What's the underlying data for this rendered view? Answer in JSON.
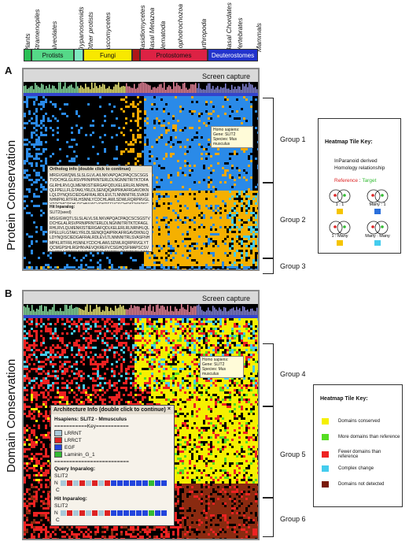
{
  "taxa": {
    "labels": [
      "Plants",
      "Stramenopiles",
      "Alveolates",
      "Trypanosomids",
      "Other protists",
      "Ascomycetes",
      "Basidiomycetes",
      "Basal Metazoa",
      "Nematoda",
      "Lophotrochozoa",
      "Arthropoda",
      "Basal Chordates",
      "Vertebrates",
      "Mammals"
    ],
    "groups": [
      "Protists",
      "Fungi",
      "Protostomes",
      "Deuterostomes"
    ]
  },
  "panelA": {
    "letter": "A",
    "side_title": "Protein Conservation",
    "screen_caption": "Screen capture",
    "groups": [
      "Group 1",
      "Group 2",
      "Group 3"
    ],
    "tooltip": {
      "line1": "Homo sapiens:",
      "line2": "Gene: SLIT2",
      "line3": "Species: Mus musculus"
    },
    "popup": {
      "header": "Ortholog info (double click to continue)",
      "seq1": "MRGVGWQMLSLSLGLVLAILNKVAPQACPAQCSCSGSTVDCHGLGLRSVPRNIPRNTERLDLNGNNITRITKTDFAGLRHLRVLQLMENKISTIERGAFQDLKELERLRLNRNHLQLFPELLFLGTAKLYRLDLSENQIQAIPRKAFRGAVDIKNLQLDYNQISCIEDGAFRALRDLEVLTLNNNNITRLSVASFNHMPKLRTFRLHSNNLYCDCHLAWLSDWLRQRPRVGLYTQCMGPSHLRGHNVAEVQKREFVCSGHQSFMAPSCSVLHCPAACTCSNNIVDCRGKGLTEIPTNLPETITEIRLEQNTIKVIPPGAFSPYKKLRRIDLSNNQISELAPDAFQGLRSLNSLVLYGNKITELPKSLFEGLFSLQLLLLNANKINCLRVDAFQDLHNLNLLSLYDNKLQTIAKGTFSPLRAIQTMHLAQNPFICDCHLKWLADYLHTNPIETSGARCTSPRRLANKRIGQIKSKKFRCS",
      "hit_label": "Hit Inparalog:",
      "hit_name": "SLIT2(seed)",
      "seq2": "MSGIGWQTLSLSLALVLSILNKVAPQACPAQCSCSGSTVDCHGLALRSVPRNIPRNTERLDLNGNNITRITKTDFAGLRHLRVLQLMENKISTIERGAFQDLKELERLRLNRNHLQLFPELLFLGTAKLYRLDLSENQIQAIPRKAFRGAVDIKNLQLDYNQISCIEDGAFRALRDLEVLTLNNNNITRLSVASFNHMPKLRTFRLHSNNLYCDCHLAWLSDWLRQRPRVGLYTQCMGPSHLRGHNVAEVQKREFVCSGHQSFMAPSCSVLHCPAACTCSNNIVDCRGKGLTEIPTNLPETITEIRLEQNTIKVIPPGAFSPYKKLRRIDLSNNQISELAPDAFQGLRSLNSLVLYGNKITELPKSLFEGLFSLQLLLLNANKINCLRVDAFQDLHNLNLLSLYDNKLQTIAKGTFSPLRAIQTMHLAQNPFICDCHLKWLADYLHTNPIETSGARC"
    },
    "key": {
      "title": "Heatmap Tile Key:",
      "line1": "InParanoid derived",
      "line2": "Homology relationship",
      "ref": "Reference",
      "sep": " : ",
      "target": "Target",
      "items": [
        {
          "label": "1 : 1",
          "color": "#f5c400"
        },
        {
          "label": "Many : 1",
          "color": "#2a6fdb"
        },
        {
          "label": "1 : Many",
          "color": "#f5c400"
        },
        {
          "label": "Many : Many",
          "color": "#44ccee"
        }
      ]
    }
  },
  "panelB": {
    "letter": "B",
    "side_title": "Domain Conservation",
    "screen_caption": "Screen capture",
    "groups": [
      "Group 4",
      "Group 5",
      "Group 6"
    ],
    "tooltip": {
      "line1": "Homo sapiens:",
      "line2": "Gene: SLIT2",
      "line3": "Species: Mus musculus"
    },
    "arch": {
      "header": "Architecture Info (double click to continue)",
      "close": "×",
      "subtitle": "Hsapiens: SLIT2 - Mmusculus",
      "key_line": "===========Key===========",
      "legend": [
        {
          "name": "LRRNT",
          "color": "#a8c8d8"
        },
        {
          "name": "LRRCT",
          "color": "#dd2222"
        },
        {
          "name": "EGF",
          "color": "#2244dd"
        },
        {
          "name": "Laminin_G_1",
          "color": "#33bb33"
        }
      ],
      "rule": "=========================",
      "query_label": "Query Inparalog:",
      "query_name": "SLIT2",
      "hit_label": "Hit Inparalog:",
      "hit_name": "SLIT2",
      "n": "N",
      "c": "C"
    },
    "key": {
      "title": "Heatmap Tile Key:",
      "items": [
        {
          "label": "Domains conserved",
          "color": "#f5f000"
        },
        {
          "label": "More domains than reference",
          "color": "#55dd22"
        },
        {
          "label": "Fewer domains than reference",
          "color": "#ee2222"
        },
        {
          "label": "Complex change",
          "color": "#44ccee"
        },
        {
          "label": "Domains not detected",
          "color": "#7a1a0a"
        }
      ]
    }
  },
  "colors": {
    "protists": "#55d888",
    "fungi": "#f8e800",
    "protostomes": "#dd2244",
    "deuterostomes": "#2233cc"
  }
}
